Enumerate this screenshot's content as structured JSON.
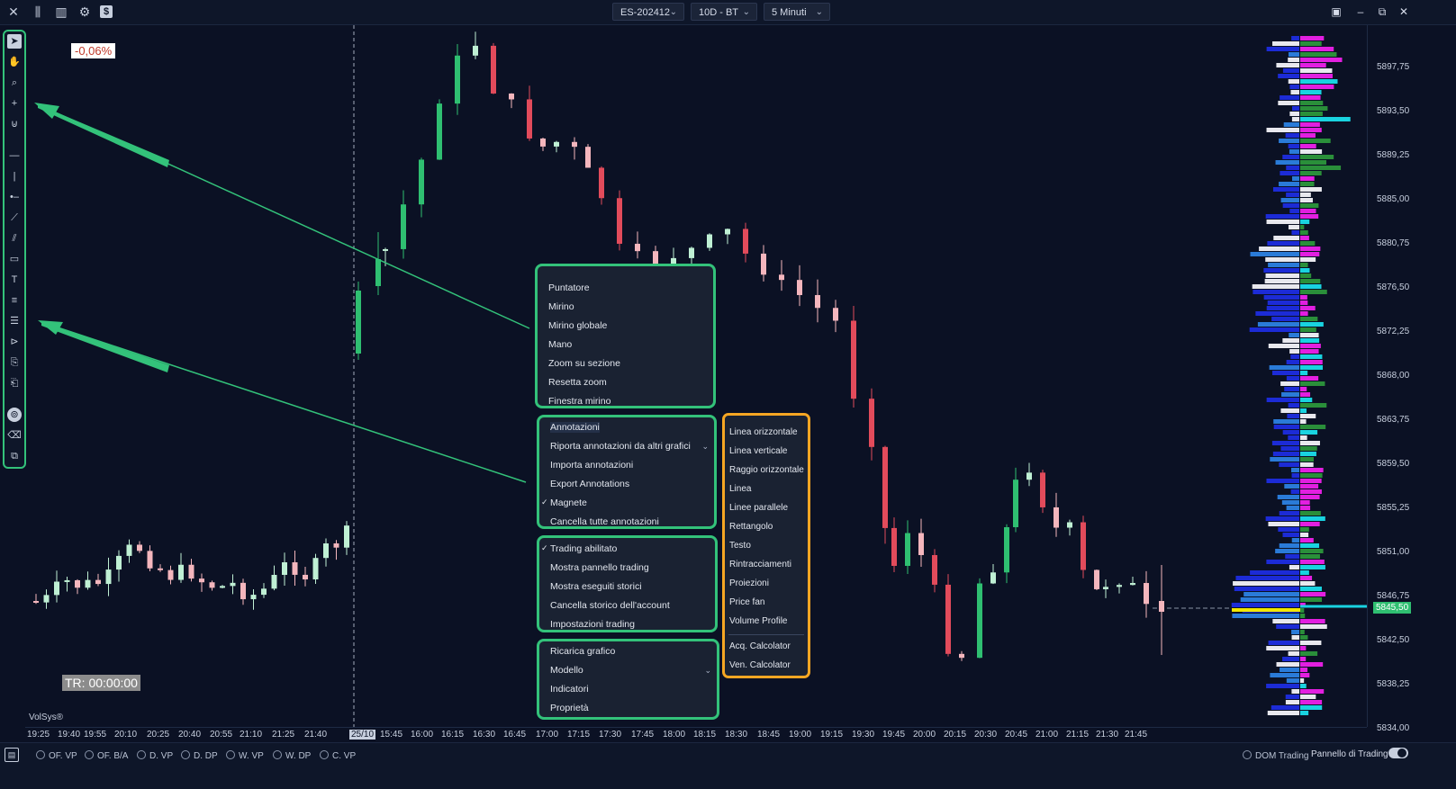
{
  "topbar": {
    "symbol": "ES-202412",
    "range": "10D - BT",
    "timeframe": "5 Minuti"
  },
  "chart": {
    "change_badge": "-0,06%",
    "timer": "TR: 00:00:00",
    "watermark": "VolSys®",
    "current_price": "5845,50",
    "price_labels": [
      "5897,75",
      "5893,50",
      "5889,25",
      "5885,00",
      "5880,75",
      "5876,50",
      "5872,25",
      "5868,00",
      "5863,75",
      "5859,50",
      "5855,25",
      "5851,00",
      "5846,75",
      "5842,50",
      "5838,25",
      "5834,00"
    ],
    "time_labels": [
      "19:25",
      "19:40",
      "19:55",
      "20:10",
      "20:25",
      "20:40",
      "20:55",
      "21:10",
      "21:25",
      "21:40",
      "25/10",
      "15:45",
      "16:00",
      "16:15",
      "16:30",
      "16:45",
      "17:00",
      "17:15",
      "17:30",
      "17:45",
      "18:00",
      "18:15",
      "18:30",
      "18:45",
      "19:00",
      "19:15",
      "19:30",
      "19:45",
      "20:00",
      "20:15",
      "20:30",
      "20:45",
      "21:00",
      "21:15",
      "21:30",
      "21:45"
    ]
  },
  "context_menu": {
    "group1": [
      "Puntatore",
      "Mirino",
      "Mirino globale",
      "Mano",
      "Zoom su sezione",
      "Resetta zoom",
      "Finestra mirino"
    ],
    "group2": [
      "Annotazioni",
      "Riporta annotazioni da altri grafici",
      "Importa annotazioni",
      "Export Annotations",
      "Magnete",
      "Cancella tutte annotazioni"
    ],
    "group3": [
      "Trading abilitato",
      "Mostra pannello trading",
      "Mostra eseguiti storici",
      "Cancella storico dell'account",
      "Impostazioni trading"
    ],
    "group4": [
      "Ricarica grafico",
      "Modello",
      "Indicatori",
      "Proprietà"
    ]
  },
  "submenu": {
    "items": [
      "Linea orizzontale",
      "Linea verticale",
      "Raggio orizzontale",
      "Linea",
      "Linee parallele",
      "Rettangolo",
      "Testo",
      "Rintracciamenti",
      "Proiezioni",
      "Price fan",
      "Volume Profile",
      "Acq. Calcolator",
      "Ven. Calcolator"
    ]
  },
  "bottombar": {
    "radios": [
      "OF. VP",
      "OF. B/A",
      "D. VP",
      "D. DP",
      "W. VP",
      "W. DP",
      "C. VP"
    ],
    "dom_trading": "DOM Trading",
    "trading_panel": "Pannello di Trading"
  },
  "colors": {
    "background": "#0b1124",
    "bull": "#2fbf71",
    "bull_light": "#bff0d4",
    "bear": "#e24b5b",
    "bear_light": "#f4b6bd",
    "highlight_green": "#33c27a",
    "highlight_orange": "#f5a623",
    "current_price_line": "#f2e600"
  }
}
